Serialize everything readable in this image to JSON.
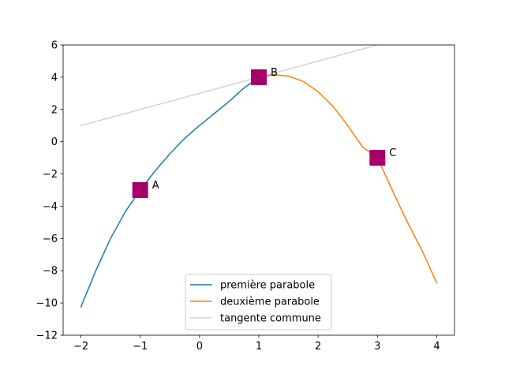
{
  "chart_data": {
    "type": "line",
    "xlim": [
      -2.3,
      4.3
    ],
    "ylim": [
      -12,
      6
    ],
    "xticks": [
      -2,
      -1,
      0,
      1,
      2,
      3,
      4
    ],
    "yticks": [
      -12,
      -10,
      -8,
      -6,
      -4,
      -2,
      0,
      2,
      4,
      6
    ],
    "grid": false,
    "legend_position": "bottom-center",
    "series": [
      {
        "name": "première parabole",
        "color": "#1f77b4",
        "x": [
          -2,
          -1.75,
          -1.5,
          -1.25,
          -1,
          -0.75,
          -0.5,
          -0.25,
          0,
          0.25,
          0.5,
          0.75,
          1,
          1.25
        ],
        "y": [
          -10.25,
          -8.01,
          -6.0,
          -4.33,
          -3.0,
          -1.82,
          -0.75,
          0.21,
          1.0,
          1.75,
          2.5,
          3.33,
          4.0,
          4.15
        ]
      },
      {
        "name": "deuxième parabole",
        "color": "#ff7f0e",
        "x": [
          1,
          1.25,
          1.5,
          1.75,
          2,
          2.25,
          2.5,
          2.75,
          3,
          3.25,
          3.5,
          3.75,
          4
        ],
        "y": [
          4.0,
          4.16,
          4.07,
          3.74,
          3.1,
          2.2,
          1.0,
          -0.33,
          -1.0,
          -3.0,
          -4.95,
          -6.73,
          -8.75
        ]
      },
      {
        "name": "tangente commune",
        "color": "#d3d3d3",
        "x": [
          -2,
          3
        ],
        "y": [
          1,
          6
        ]
      }
    ],
    "points": [
      {
        "label": "A",
        "x": -1,
        "y": -3
      },
      {
        "label": "B",
        "x": 1,
        "y": 4
      },
      {
        "label": "C",
        "x": 3,
        "y": -1
      }
    ],
    "marker_color": "#a5006a"
  }
}
